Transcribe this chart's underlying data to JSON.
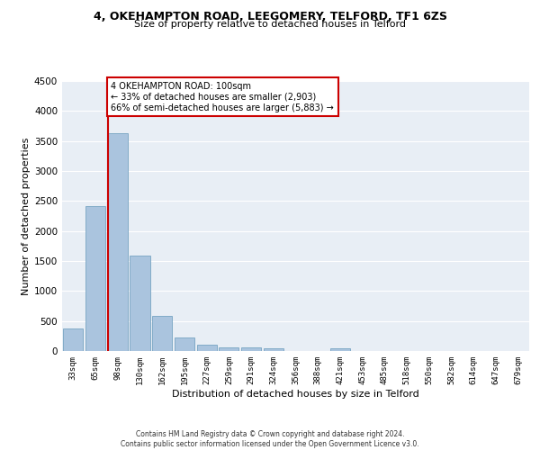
{
  "title1": "4, OKEHAMPTON ROAD, LEEGOMERY, TELFORD, TF1 6ZS",
  "title2": "Size of property relative to detached houses in Telford",
  "xlabel": "Distribution of detached houses by size in Telford",
  "ylabel": "Number of detached properties",
  "categories": [
    "33sqm",
    "65sqm",
    "98sqm",
    "130sqm",
    "162sqm",
    "195sqm",
    "227sqm",
    "259sqm",
    "291sqm",
    "324sqm",
    "356sqm",
    "388sqm",
    "421sqm",
    "453sqm",
    "485sqm",
    "518sqm",
    "550sqm",
    "582sqm",
    "614sqm",
    "647sqm",
    "679sqm"
  ],
  "values": [
    380,
    2420,
    3630,
    1590,
    590,
    230,
    110,
    60,
    55,
    40,
    0,
    0,
    50,
    0,
    0,
    0,
    0,
    0,
    0,
    0,
    0
  ],
  "bar_color": "#aac4de",
  "bar_edge_color": "#6699bb",
  "subject_line_index": 2,
  "subject_line_color": "#cc0000",
  "annotation_text": "4 OKEHAMPTON ROAD: 100sqm\n← 33% of detached houses are smaller (2,903)\n66% of semi-detached houses are larger (5,883) →",
  "annotation_box_color": "#cc0000",
  "ylim": [
    0,
    4500
  ],
  "yticks": [
    0,
    500,
    1000,
    1500,
    2000,
    2500,
    3000,
    3500,
    4000,
    4500
  ],
  "bg_color": "#e8eef5",
  "grid_color": "#ffffff",
  "footer_line1": "Contains HM Land Registry data © Crown copyright and database right 2024.",
  "footer_line2": "Contains public sector information licensed under the Open Government Licence v3.0."
}
